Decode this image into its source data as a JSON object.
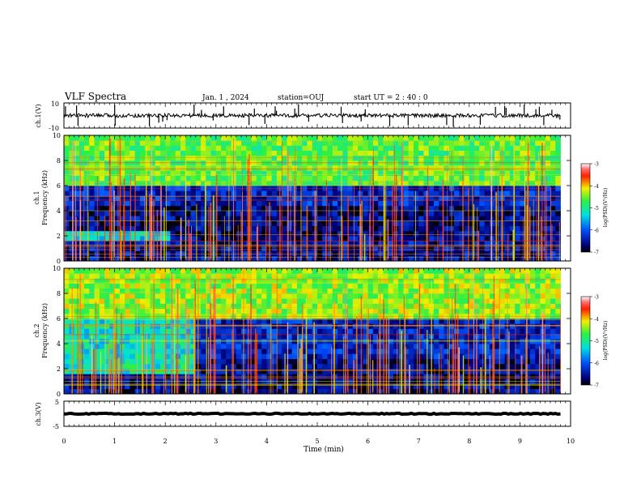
{
  "header": {
    "title": "VLF Spectra",
    "date": "Jan. 1 , 2024",
    "station": "station=OUJ",
    "start_time": "start UT =  2 : 40 : 0"
  },
  "panels": {
    "ch1_waveform": {
      "ylabel": "ch.1(V)",
      "ymax_label": "10",
      "ymin_label": "-10"
    },
    "ch1_spectrogram": {
      "ylabel_line1": "ch.1",
      "ylabel_line2": "Frequency (kHz)",
      "colorbar_label": "log(PSD)(V²/Hz)"
    },
    "ch2_spectrogram": {
      "ylabel_line1": "ch.2",
      "ylabel_line2": "Frequency (kHz)",
      "colorbar_label": "log(PSD)(V²/Hz)"
    },
    "ch3_waveform": {
      "ylabel": "ch.3(V)",
      "ymax_label": "5",
      "ymin_label": "-5"
    }
  },
  "xaxis": {
    "label": "Time (min)",
    "ticks": [
      "0",
      "1",
      "2",
      "3",
      "4",
      "5",
      "6",
      "7",
      "8",
      "9",
      "10"
    ]
  },
  "freq_ticks": [
    "0",
    "2",
    "4",
    "6",
    "8",
    "10"
  ],
  "colorbar_ticks": [
    "-3",
    "-4",
    "-5",
    "-6",
    "-7"
  ],
  "colors": {
    "spectrogram_low": "#00007a",
    "spectrogram_mid": "#1fd6c0",
    "spectrogram_high": "#c8f020",
    "spectrogram_peak": "#ff2a00"
  },
  "chart_data": [
    {
      "type": "line",
      "name": "ch.1 waveform",
      "ylabel": "ch.1(V)",
      "xlim": [
        0,
        10
      ],
      "ylim": [
        -10,
        10
      ],
      "baseline_value": 0,
      "typical_amplitude": 1.5
    },
    {
      "type": "heatmap",
      "name": "ch.1 spectrogram",
      "xlabel": "Time (min)",
      "ylabel": "Frequency (kHz)",
      "xlim": [
        0,
        10
      ],
      "ylim": [
        0,
        10
      ],
      "data_end_time": 9.8,
      "colorbar": {
        "label": "log(PSD)(V²/Hz)",
        "range": [
          -7,
          -3
        ]
      },
      "features": [
        {
          "band": [
            6,
            10
          ],
          "level": -4.6,
          "time": [
            0,
            9.8
          ]
        },
        {
          "band": [
            4.5,
            6
          ],
          "level": -6.3,
          "time": [
            0,
            9.8
          ]
        },
        {
          "band": [
            1.5,
            2.4
          ],
          "level": -5.3,
          "time": [
            0,
            2.1
          ]
        },
        {
          "band": [
            0,
            1.5
          ],
          "level": -6.5,
          "time": [
            0,
            9.8
          ]
        }
      ]
    },
    {
      "type": "heatmap",
      "name": "ch.2 spectrogram",
      "xlabel": "Time (min)",
      "ylabel": "Frequency (kHz)",
      "xlim": [
        0,
        10
      ],
      "ylim": [
        0,
        10
      ],
      "data_end_time": 9.8,
      "colorbar": {
        "label": "log(PSD)(V²/Hz)",
        "range": [
          -7,
          -3
        ]
      },
      "features": [
        {
          "band": [
            6,
            10
          ],
          "level": -4.4,
          "time": [
            0,
            9.8
          ]
        },
        {
          "band": [
            3,
            6
          ],
          "level": -5.2,
          "time": [
            0,
            2.6
          ]
        },
        {
          "band": [
            3,
            6
          ],
          "level": -6.3,
          "time": [
            2.6,
            9.8
          ]
        },
        {
          "band": [
            1.8,
            2.7
          ],
          "level": -5.1,
          "time": [
            0,
            2.6
          ]
        }
      ]
    },
    {
      "type": "line",
      "name": "ch.3 waveform",
      "ylabel": "ch.3(V)",
      "xlim": [
        0,
        10
      ],
      "ylim": [
        -5,
        5
      ],
      "baseline_value": 0,
      "typical_amplitude": 0.2
    }
  ]
}
